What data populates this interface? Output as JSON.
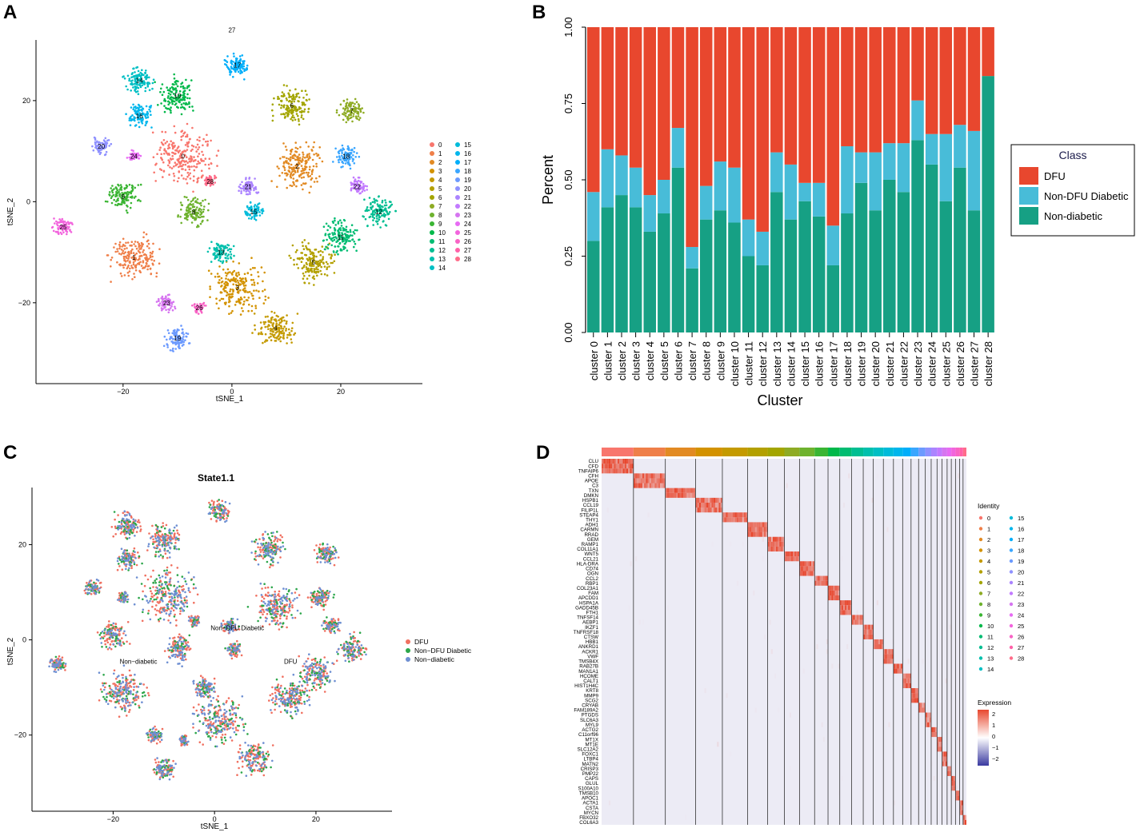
{
  "panels": {
    "a": {
      "letter": "A"
    },
    "b": {
      "letter": "B"
    },
    "c": {
      "letter": "C"
    },
    "d": {
      "letter": "D"
    }
  },
  "colors": {
    "dfu": "#e8472e",
    "non_dfu_diabetic": "#48bcd8",
    "non_diabetic": "#16a084",
    "c_dfu": "#f07060",
    "c_non_dfu": "#2ca64a",
    "c_non_diabetic": "#6e8fd2"
  },
  "cluster_colors": [
    "#f8766d",
    "#ef7f49",
    "#e28a23",
    "#d39200",
    "#c49a00",
    "#b3a000",
    "#a3a500",
    "#8eab24",
    "#6eb22e",
    "#3ab533",
    "#00b84a",
    "#00bc72",
    "#00be92",
    "#00c0ad",
    "#00bfc4",
    "#00bbda",
    "#00b6ec",
    "#00aefa",
    "#3aa6ff",
    "#6c9afe",
    "#8f91ff",
    "#ab84ff",
    "#c27aff",
    "#d675f0",
    "#e76bf3",
    "#f264dd",
    "#f863c5",
    "#ff61a8",
    "#ff6c8a"
  ],
  "chart_data": [
    {
      "panel": "A",
      "type": "scatter",
      "title": "",
      "xlabel": "tSNE_1",
      "ylabel": "tSNE_2",
      "xticks": [
        "−20",
        "0",
        "20"
      ],
      "yticks": [
        "20",
        "0",
        "−20"
      ],
      "xlim": [
        -36,
        35
      ],
      "ylim": [
        -36,
        32
      ],
      "legend_position": "right",
      "legend_labels": [
        "0",
        "1",
        "2",
        "3",
        "4",
        "5",
        "6",
        "7",
        "8",
        "9",
        "10",
        "11",
        "12",
        "13",
        "14",
        "15",
        "16",
        "17",
        "18",
        "19",
        "20",
        "21",
        "22",
        "23",
        "24",
        "25",
        "26",
        "27",
        "28"
      ],
      "clusters": [
        {
          "label": "0",
          "x": -9,
          "y": 9
        },
        {
          "label": "1",
          "x": -18,
          "y": -11
        },
        {
          "label": "2",
          "x": 12,
          "y": 7
        },
        {
          "label": "3",
          "x": 1,
          "y": -17
        },
        {
          "label": "4",
          "x": 8,
          "y": -25
        },
        {
          "label": "5",
          "x": 15,
          "y": -12
        },
        {
          "label": "6",
          "x": 11,
          "y": 19
        },
        {
          "label": "7",
          "x": 22,
          "y": 18
        },
        {
          "label": "8",
          "x": -7,
          "y": -2
        },
        {
          "label": "9",
          "x": -20,
          "y": 1
        },
        {
          "label": "10",
          "x": -10,
          "y": 21
        },
        {
          "label": "11",
          "x": 20,
          "y": -7
        },
        {
          "label": "12",
          "x": 27,
          "y": -2
        },
        {
          "label": "13",
          "x": -2,
          "y": -10
        },
        {
          "label": "14",
          "x": -17,
          "y": 24
        },
        {
          "label": "15",
          "x": 4,
          "y": -2
        },
        {
          "label": "16",
          "x": -17,
          "y": 17
        },
        {
          "label": "17",
          "x": 1,
          "y": 27
        },
        {
          "label": "18",
          "x": 21,
          "y": 9
        },
        {
          "label": "19",
          "x": -10,
          "y": -27
        },
        {
          "label": "20",
          "x": -24,
          "y": 11
        },
        {
          "label": "21",
          "x": 3,
          "y": 3
        },
        {
          "label": "22",
          "x": 23,
          "y": 3
        },
        {
          "label": "23",
          "x": -12,
          "y": -20
        },
        {
          "label": "24",
          "x": -18,
          "y": 9
        },
        {
          "label": "25",
          "x": -31,
          "y": -5
        },
        {
          "label": "26",
          "x": -6,
          "y": -21
        },
        {
          "label": "27",
          "x": 0,
          "y": 34
        },
        {
          "label": "28",
          "x": -4,
          "y": 4
        }
      ]
    },
    {
      "panel": "B",
      "type": "bar",
      "stacked": true,
      "xlabel": "Cluster",
      "ylabel": "Percent",
      "ylim": [
        0,
        1
      ],
      "yticks": [
        "0.00",
        "0.25",
        "0.50",
        "0.75",
        "1.00"
      ],
      "legend_title": "Class",
      "legend_position": "right",
      "categories": [
        "cluster 0",
        "cluster 1",
        "cluster 2",
        "cluster 3",
        "cluster 4",
        "cluster 5",
        "cluster 6",
        "cluster 7",
        "cluster 8",
        "cluster 9",
        "cluster 10",
        "cluster 11",
        "cluster 12",
        "cluster 13",
        "cluster 14",
        "cluster 15",
        "cluster 16",
        "cluster 17",
        "cluster 18",
        "cluster 19",
        "cluster 20",
        "cluster 21",
        "cluster 22",
        "cluster 23",
        "cluster 24",
        "cluster 25",
        "cluster 26",
        "cluster 27",
        "cluster 28"
      ],
      "series": [
        {
          "name": "Non-diabetic",
          "values": [
            0.3,
            0.41,
            0.45,
            0.41,
            0.33,
            0.39,
            0.54,
            0.21,
            0.37,
            0.4,
            0.36,
            0.25,
            0.22,
            0.46,
            0.37,
            0.43,
            0.38,
            0.22,
            0.39,
            0.49,
            0.4,
            0.5,
            0.46,
            0.63,
            0.55,
            0.43,
            0.54,
            0.4,
            0.84
          ]
        },
        {
          "name": "Non-DFU Diabetic",
          "values": [
            0.16,
            0.19,
            0.13,
            0.13,
            0.12,
            0.11,
            0.13,
            0.07,
            0.11,
            0.16,
            0.18,
            0.12,
            0.11,
            0.13,
            0.18,
            0.06,
            0.11,
            0.13,
            0.22,
            0.1,
            0.19,
            0.12,
            0.16,
            0.13,
            0.1,
            0.22,
            0.14,
            0.26,
            0.0
          ]
        },
        {
          "name": "DFU",
          "values": [
            0.54,
            0.4,
            0.42,
            0.46,
            0.55,
            0.5,
            0.33,
            0.72,
            0.52,
            0.44,
            0.46,
            0.63,
            0.67,
            0.41,
            0.45,
            0.51,
            0.51,
            0.65,
            0.39,
            0.41,
            0.41,
            0.38,
            0.38,
            0.24,
            0.35,
            0.35,
            0.32,
            0.34,
            0.16
          ]
        }
      ]
    },
    {
      "panel": "C",
      "type": "scatter",
      "title": "State1.1",
      "xlabel": "tSNE_1",
      "ylabel": "tSNE_2",
      "xticks": [
        "−20",
        "0",
        "20"
      ],
      "yticks": [
        "20",
        "0",
        "−20"
      ],
      "xlim": [
        -36,
        35
      ],
      "ylim": [
        -36,
        32
      ],
      "legend_position": "right",
      "legend_labels": [
        "DFU",
        "Non−DFU Diabetic",
        "Non−diabetic"
      ],
      "annotations": [
        {
          "text": "Non−DFU Diabetic",
          "x": 4.5,
          "y": 2
        },
        {
          "text": "Non−diabetic",
          "x": -15,
          "y": -5
        },
        {
          "text": "DFU",
          "x": 15,
          "y": -5
        }
      ]
    },
    {
      "panel": "D",
      "type": "heatmap",
      "legend_identity_title": "Identity",
      "legend_identity_labels": [
        "0",
        "1",
        "2",
        "3",
        "4",
        "5",
        "6",
        "7",
        "8",
        "9",
        "10",
        "11",
        "12",
        "13",
        "14",
        "15",
        "16",
        "17",
        "18",
        "19",
        "20",
        "21",
        "22",
        "23",
        "24",
        "25",
        "26",
        "27",
        "28"
      ],
      "legend_expression_title": "Expression",
      "expression_ticks": [
        "2",
        "1",
        "0",
        "−1",
        "−2"
      ],
      "group_widths": [
        38,
        38,
        36,
        32,
        30,
        24,
        20,
        18,
        18,
        16,
        14,
        14,
        14,
        12,
        12,
        12,
        11,
        10,
        9,
        8,
        7,
        7,
        6,
        6,
        5,
        5,
        5,
        4,
        4
      ],
      "genes": [
        "CLU",
        "CFD",
        "TNFAIP6",
        "CFH",
        "APOE",
        "C3",
        "TXN",
        "DMKN",
        "HSPB1",
        "CCL19",
        "FILIP1L",
        "STEAP4",
        "THY1",
        "ADH1",
        "CARMN",
        "RRAD",
        "GEM",
        "RAMP1",
        "COL11A1",
        "WNT5",
        "CCL21",
        "HLA-DRA",
        "CD74",
        "OGN",
        "CCL2",
        "RBP1",
        "COL23A1",
        "FAM",
        "APCDD1",
        "HSPA1A",
        "GADD45B",
        "FTH1",
        "TNFSF14",
        "AEBP1",
        "IKZF1",
        "TNFRSF18",
        "CTSW",
        "HBB1",
        "ANKRD1",
        "ACKR1",
        "VWF",
        "TMSB4X",
        "RAB27B",
        "MAN1A1",
        "HCOME",
        "CALT1",
        "HIST1H4C",
        "KRT8",
        "MMP9",
        "SCG2",
        "CRYAB",
        "FAM189A2",
        "PTGDS",
        "SLC6A3",
        "MYL9",
        "ACTG2",
        "C11orf96",
        "MT1X",
        "MT1E",
        "SLC12A2",
        "FOXC1",
        "LTBP4",
        "MATN2",
        "CRISP3",
        "PMP22",
        "CAPS",
        "GLUL",
        "S100A10",
        "TMSB10",
        "APOC1",
        "ACTA1",
        "CSTA",
        "MYCN",
        "FBXO32",
        "COL6A3"
      ]
    }
  ]
}
